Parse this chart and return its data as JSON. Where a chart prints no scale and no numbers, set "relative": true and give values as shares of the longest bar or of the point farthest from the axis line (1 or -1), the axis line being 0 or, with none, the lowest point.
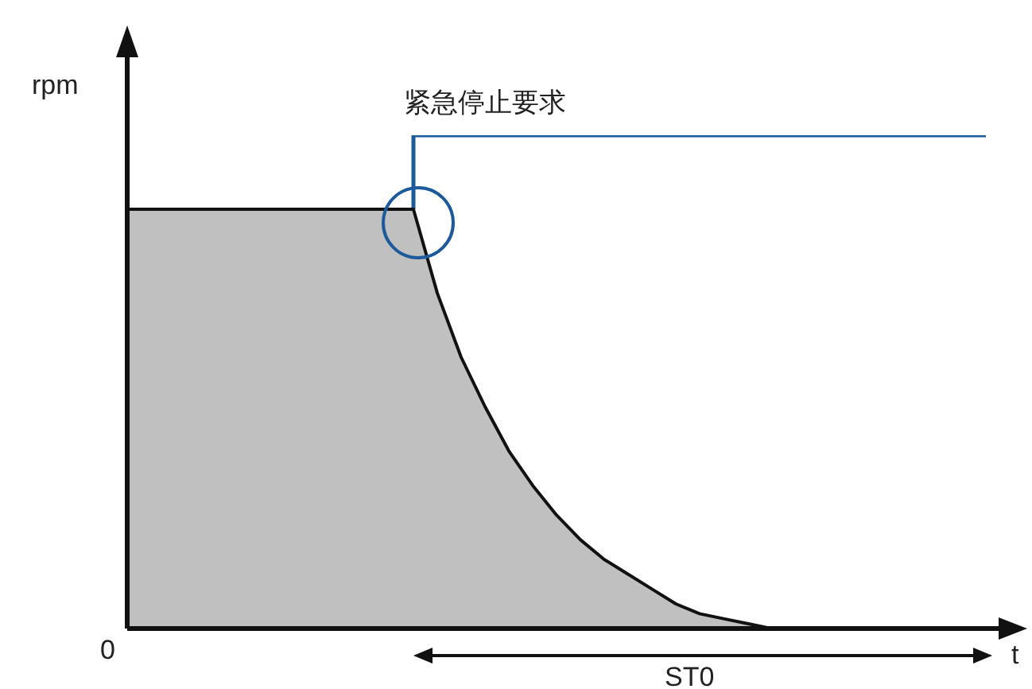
{
  "chart_data": {
    "type": "area",
    "relative": true,
    "xlabel": "t",
    "ylabel": "rpm",
    "grid": false,
    "legend": false,
    "categories": [
      null,
      null,
      null,
      null,
      null,
      null,
      null,
      null,
      null,
      null,
      null,
      null,
      null,
      null,
      null,
      null,
      null,
      null,
      null,
      null,
      null,
      null,
      null,
      null,
      null,
      null,
      null,
      null,
      null,
      null,
      null,
      null,
      null,
      null,
      null,
      null,
      null
    ],
    "series": [
      {
        "color": "#c0c0c0",
        "values": [
          0.85,
          0.85,
          0.85,
          0.85,
          0.85,
          0.85,
          0.85,
          0.85,
          0.85,
          0.85,
          0.85,
          0.85,
          0.85,
          0.68,
          0.55,
          0.45,
          0.36,
          0.29,
          0.23,
          0.18,
          0.14,
          0.11,
          0.08,
          0.05,
          0.03,
          0.02,
          0.01,
          0,
          null,
          null,
          null,
          null,
          null,
          null,
          null,
          null,
          null
        ]
      },
      {
        "type": "step",
        "color": "#1c5a9c",
        "values": [
          null,
          null,
          null,
          null,
          null,
          null,
          null,
          null,
          null,
          null,
          null,
          null,
          0.85,
          1,
          1,
          1,
          1,
          1,
          1,
          1,
          1,
          1,
          1,
          1,
          1,
          1,
          1,
          1,
          1,
          1,
          1,
          1,
          1,
          1,
          1,
          1,
          1
        ]
      }
    ],
    "annotations": [
      "紧急停止要求",
      "ST0",
      "0"
    ]
  }
}
